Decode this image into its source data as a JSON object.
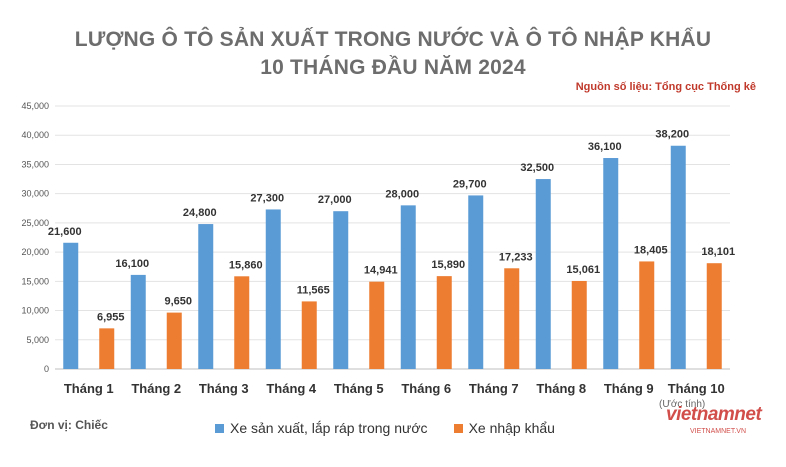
{
  "chart_data": {
    "type": "bar",
    "title_line1": "LƯỢNG Ô TÔ SẢN XUẤT TRONG NƯỚC VÀ Ô TÔ NHẬP KHẨU",
    "title_line2": "10 THÁNG ĐẦU NĂM 2024",
    "source": "Nguồn số liệu: Tổng cục Thống kê",
    "unit": "Đơn vị: Chiếc",
    "note": "(Ước tính)",
    "categories": [
      "Tháng 1",
      "Tháng 2",
      "Tháng 3",
      "Tháng 4",
      "Tháng 5",
      "Tháng 6",
      "Tháng 7",
      "Tháng 8",
      "Tháng 9",
      "Tháng 10"
    ],
    "series": [
      {
        "name": "Xe sản xuất, lắp ráp trong nước",
        "color": "#5b9bd5",
        "values": [
          21600,
          16100,
          24800,
          27300,
          27000,
          28000,
          29700,
          32500,
          36100,
          38200
        ],
        "labels": [
          "21,600",
          "16,100",
          "24,800",
          "27,300",
          "27,000",
          "28,000",
          "29,700",
          "32,500",
          "36,100",
          "38,200"
        ]
      },
      {
        "name": "Xe nhập khẩu",
        "color": "#ed7d31",
        "values": [
          6955,
          9650,
          15860,
          11565,
          14941,
          15890,
          17233,
          15061,
          18405,
          18101
        ],
        "labels": [
          "6,955",
          "9,650",
          "15,860",
          "11,565",
          "14,941",
          "15,890",
          "17,233",
          "15,061",
          "18,405",
          "18,101"
        ]
      }
    ],
    "ylim": [
      0,
      45000
    ],
    "yticks": [
      "0",
      "5,000",
      "10,000",
      "15,000",
      "20,000",
      "25,000",
      "30,000",
      "35,000",
      "40,000",
      "45,000"
    ],
    "grid": true,
    "legend_position": "bottom"
  },
  "watermark": {
    "logo": "vietnamnet",
    "sub": "VIETNAMNET.VN"
  }
}
